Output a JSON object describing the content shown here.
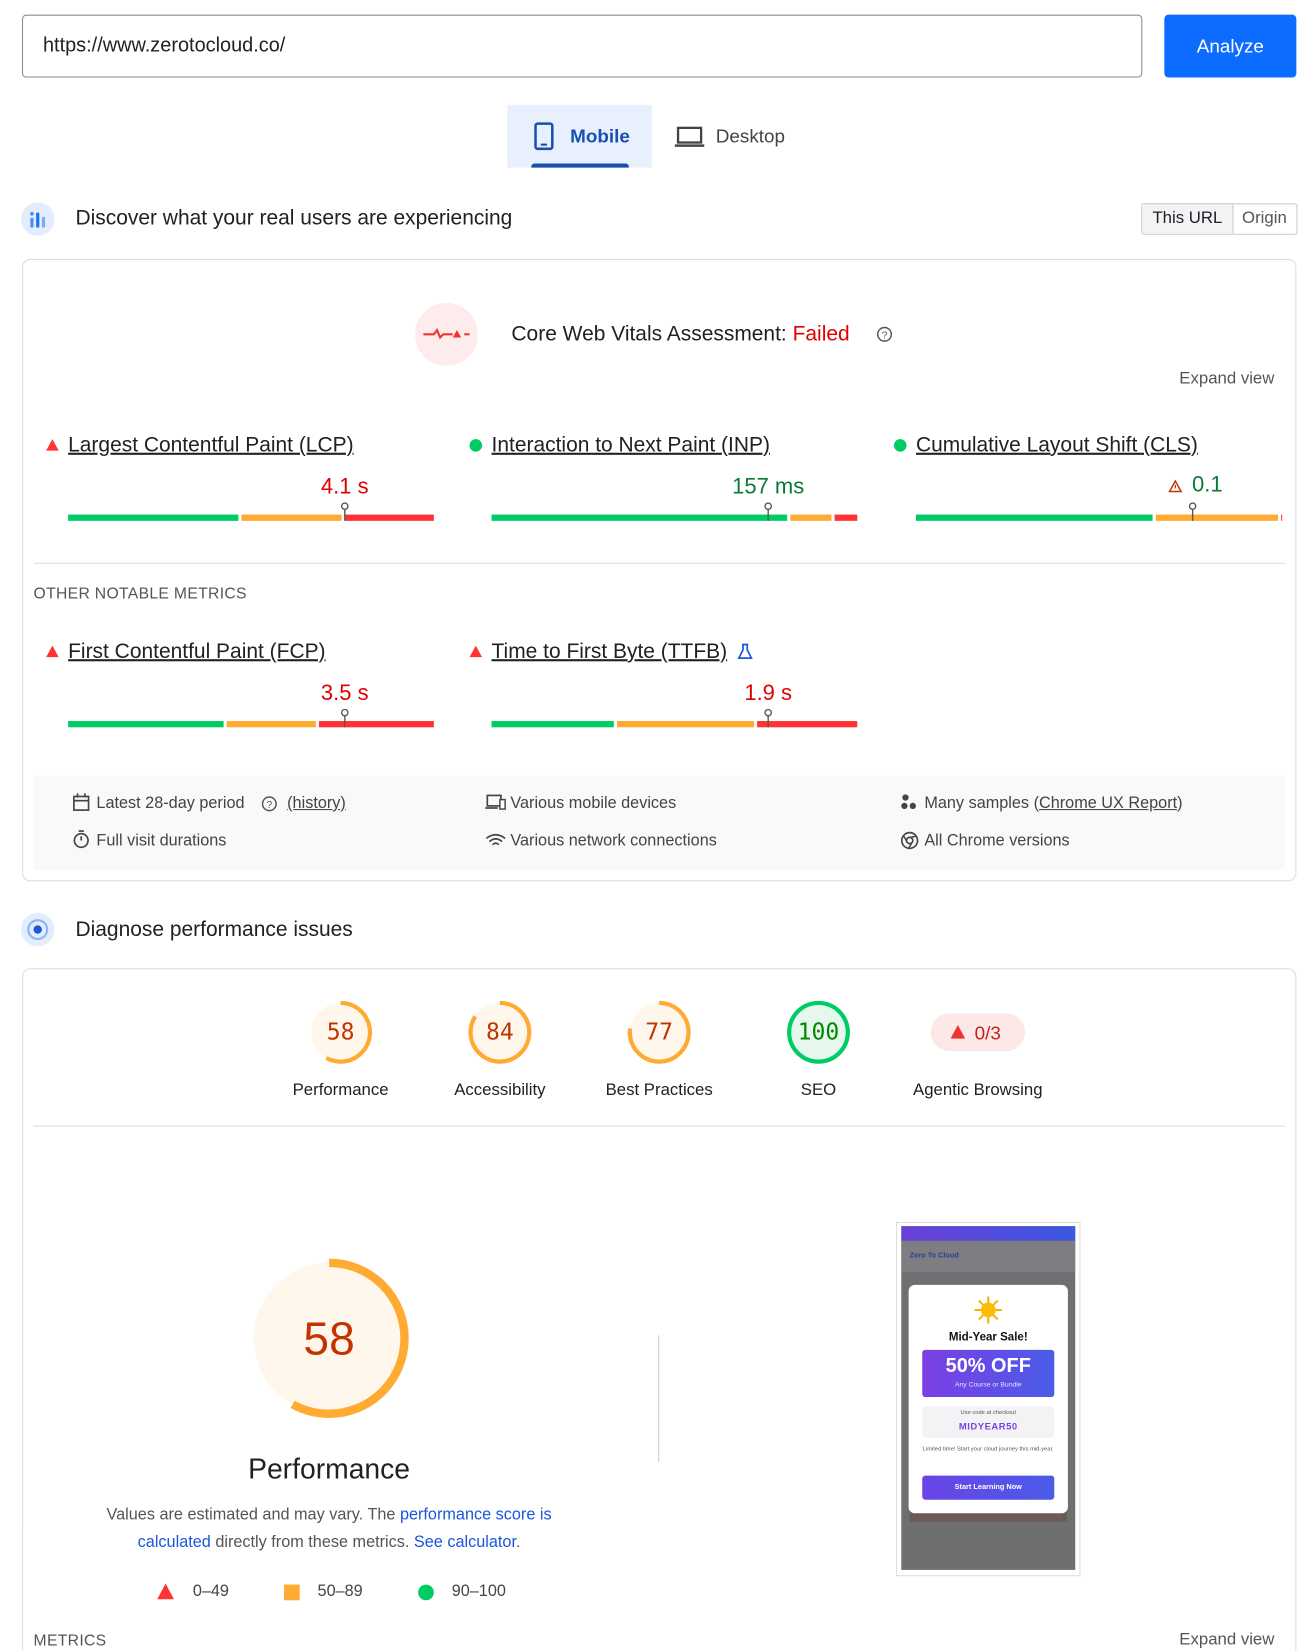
{
  "search": {
    "url": "https://www.zerotocloud.co/",
    "button": "Analyze"
  },
  "tabs": [
    {
      "label": "Mobile",
      "selected": true
    },
    {
      "label": "Desktop",
      "selected": false
    }
  ],
  "field_data": {
    "title": "Discover what your real users are experiencing",
    "scope": [
      {
        "label": "This URL",
        "selected": true
      },
      {
        "label": "Origin",
        "selected": false
      }
    ],
    "assessment": {
      "label": "Core Web Vitals Assessment:",
      "result": "Failed"
    },
    "expand": "Expand view",
    "core_metrics": [
      {
        "name": "Largest Contentful Paint (LCP)",
        "value": "4.1 s",
        "status": "poor",
        "distribution": [
          47,
          28,
          25
        ]
      },
      {
        "name": "Interaction to Next Paint (INP)",
        "value": "157 ms",
        "status": "good",
        "distribution": [
          81,
          12,
          7
        ]
      },
      {
        "name": "Cumulative Layout Shift (CLS)",
        "value": "0.1",
        "status": "good",
        "warning": true,
        "distribution": [
          65,
          34,
          1
        ]
      }
    ],
    "other_heading": "OTHER NOTABLE METRICS",
    "other_metrics": [
      {
        "name": "First Contentful Paint (FCP)",
        "value": "3.5 s",
        "status": "poor",
        "distribution": [
          43,
          25,
          32
        ]
      },
      {
        "name": "Time to First Byte (TTFB)",
        "value": "1.9 s",
        "status": "poor",
        "experimental": true,
        "distribution": [
          34,
          38,
          28
        ]
      }
    ],
    "details": {
      "period": "Latest 28-day period",
      "history": "(history)",
      "devices": "Various mobile devices",
      "samples": "Many samples (",
      "samples_source": "Chrome UX Report",
      "samples_end": ")",
      "durations": "Full visit durations",
      "network": "Various network connections",
      "versions": "All Chrome versions"
    }
  },
  "diagnose": {
    "title": "Diagnose performance issues",
    "categories": [
      {
        "name": "Performance",
        "score": 58
      },
      {
        "name": "Accessibility",
        "score": 84
      },
      {
        "name": "Best Practices",
        "score": 77
      },
      {
        "name": "SEO",
        "score": 100
      }
    ],
    "agentic": {
      "name": "Agentic Browsing",
      "value": "0/3"
    },
    "summary": {
      "score": 58,
      "title": "Performance",
      "text_1": "Values are estimated and may vary. The ",
      "link_1": "performance score is calculated",
      "text_2": " directly from these metrics. ",
      "link_2": "See calculator",
      "text_3": "."
    },
    "legend": [
      "0–49",
      "50–89",
      "90–100"
    ],
    "metrics_heading": "METRICS",
    "expand": "Expand view",
    "screenshot": {
      "brand": "Zero To Cloud",
      "headline": "Mid-Year Sale!",
      "offer": "50% OFF",
      "offer_note": "Any Course or Bundle",
      "code_label": "Use code at checkout",
      "code": "MIDYEAR50",
      "note": "Limited time! Start your cloud journey this mid-year.",
      "cta": "Start Learning Now"
    }
  }
}
